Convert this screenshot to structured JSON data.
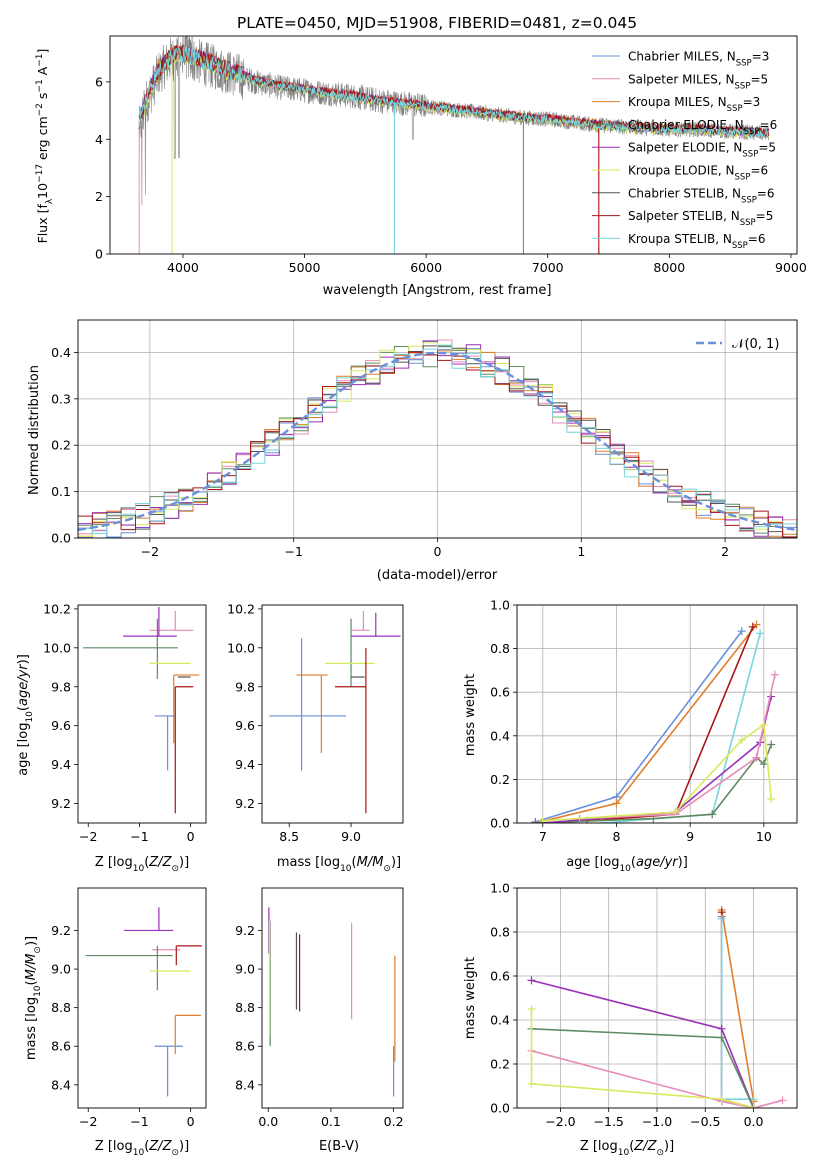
{
  "chart_data": [
    {
      "type": "line",
      "title": "PLATE=0450, MJD=51908, FIBERID=0481, z=0.045",
      "xlabel": "wavelength [Angstrom, rest frame]",
      "ylabel": "Flux [fλ10⁻¹⁷ erg cm⁻² s⁻¹ A⁻¹]",
      "xlim": [
        3400,
        9050
      ],
      "ylim": [
        0,
        7.6
      ],
      "xticks": [
        "4000",
        "5000",
        "6000",
        "7000",
        "8000",
        "9000"
      ],
      "yticks": [
        "0",
        "2",
        "4",
        "6"
      ],
      "legend_position": "right",
      "observed": {
        "x": [
          3640,
          3700,
          3800,
          3900,
          4000,
          4200,
          4400,
          4600,
          4800,
          5000,
          5200,
          5400,
          5600,
          5800,
          6000,
          6200,
          6400,
          6600,
          6800,
          7000,
          7200,
          7400,
          7600,
          7800,
          8000,
          8200,
          8400,
          8600,
          8800
        ],
        "y": [
          4.3,
          5.3,
          6.3,
          6.8,
          6.9,
          6.6,
          6.3,
          6.0,
          5.8,
          5.7,
          5.6,
          5.5,
          5.35,
          5.25,
          5.15,
          5.05,
          4.95,
          4.85,
          4.75,
          4.7,
          4.6,
          4.5,
          4.45,
          4.4,
          4.35,
          4.35,
          4.3,
          4.25,
          4.2
        ]
      },
      "model": {
        "x": [
          3640,
          3700,
          3800,
          3900,
          4000,
          4200,
          4400,
          4600,
          4800,
          5000,
          5200,
          5400,
          5600,
          5800,
          6000,
          6200,
          6400,
          6600,
          6800,
          7000,
          7200,
          7400,
          7600,
          7800,
          8000,
          8200,
          8400,
          8600,
          8800
        ],
        "y": [
          4.6,
          5.4,
          6.4,
          6.9,
          7.0,
          6.7,
          6.35,
          6.05,
          5.85,
          5.75,
          5.6,
          5.5,
          5.35,
          5.25,
          5.15,
          5.05,
          4.95,
          4.85,
          4.75,
          4.7,
          4.6,
          4.5,
          4.45,
          4.4,
          4.35,
          4.35,
          4.3,
          4.25,
          4.2
        ]
      },
      "series": [
        {
          "name": "Chabrier MILES, N",
          "sub": "SSP",
          "suffix": "=3",
          "color": "#6b8fdb"
        },
        {
          "name": "Salpeter MILES, N",
          "sub": "SSP",
          "suffix": "=5",
          "color": "#e88bb9"
        },
        {
          "name": "Kroupa MILES, N",
          "sub": "SSP",
          "suffix": "=3",
          "color": "#e07e2a"
        },
        {
          "name": "Chabrier ELODIE, N",
          "sub": "SSP",
          "suffix": "=6",
          "color": "#5f8a64"
        },
        {
          "name": "Salpeter ELODIE, N",
          "sub": "SSP",
          "suffix": "=5",
          "color": "#9b30b8"
        },
        {
          "name": "Kroupa ELODIE, N",
          "sub": "SSP",
          "suffix": "=6",
          "color": "#d8ea5a"
        },
        {
          "name": "Chabrier STELIB, N",
          "sub": "SSP",
          "suffix": "=6",
          "color": "#555555"
        },
        {
          "name": "Salpeter STELIB, N",
          "sub": "SSP",
          "suffix": "=5",
          "color": "#a81616"
        },
        {
          "name": "Kroupa STELIB, N",
          "sub": "SSP",
          "suffix": "=6",
          "color": "#77d5dc"
        }
      ]
    },
    {
      "type": "histogram",
      "xlabel": "(data-model)/error",
      "ylabel": "Normed distribution",
      "xlim": [
        -2.5,
        2.5
      ],
      "ylim": [
        0,
        0.47
      ],
      "xticks": [
        "−2",
        "−1",
        "0",
        "1",
        "2"
      ],
      "yticks": [
        "0.0",
        "0.1",
        "0.2",
        "0.3",
        "0.4"
      ],
      "grid": true,
      "legend": "𝒩(0, 1)",
      "legend_position": "top-right",
      "bin_width": 0.1
    },
    {
      "type": "scatter",
      "xlabel": "Z [log₁₀(Z/Z⊙)]",
      "ylabel": "age  [log₁₀(age/yr)]",
      "xlim": [
        -2.2,
        0.3
      ],
      "ylim": [
        9.1,
        10.22
      ],
      "xticks": [
        "−2",
        "−1",
        "0"
      ],
      "yticks": [
        "9.2",
        "9.4",
        "9.6",
        "9.8",
        "10.0",
        "10.2"
      ],
      "points": [
        {
          "x": -0.45,
          "xerr": [
            0.25,
            0.15
          ],
          "y": 9.65,
          "yerr": [
            0.28,
            0.0
          ],
          "color": "#6b8fdb"
        },
        {
          "x": -0.3,
          "xerr": [
            0.5,
            0.35
          ],
          "y": 10.09,
          "yerr": [
            0.0,
            0.1
          ],
          "color": "#e88bb9"
        },
        {
          "x": -0.33,
          "xerr": [
            0.0,
            0.5
          ],
          "y": 9.86,
          "yerr": [
            0.35,
            0.0
          ],
          "color": "#e07e2a"
        },
        {
          "x": -0.65,
          "xerr": [
            1.45,
            0.4
          ],
          "y": 10.0,
          "yerr": [
            0.16,
            0.15
          ],
          "color": "#5f8a64"
        },
        {
          "x": -0.62,
          "xerr": [
            0.7,
            0.35
          ],
          "y": 10.06,
          "yerr": [
            0.0,
            0.15
          ],
          "color": "#9b30b8"
        },
        {
          "x": -0.3,
          "xerr": [
            0.5,
            0.3
          ],
          "y": 9.92,
          "yerr": [
            0.0,
            0.0
          ],
          "color": "#d8ea5a"
        },
        {
          "x": -0.25,
          "xerr": [
            0.0,
            0.25
          ],
          "y": 9.85,
          "yerr": [
            0.0,
            0.0
          ],
          "color": "#555555"
        },
        {
          "x": -0.3,
          "xerr": [
            0.0,
            0.35
          ],
          "y": 9.8,
          "yerr": [
            0.65,
            0.0
          ],
          "color": "#a81616"
        },
        {
          "x": -0.3,
          "xerr": [
            0.0,
            0.0
          ],
          "y": 9.65,
          "yerr": [
            0.0,
            0.0
          ],
          "color": "#77d5dc"
        }
      ]
    },
    {
      "type": "scatter",
      "xlabel": "mass [log₁₀(M/M⊙)]",
      "xlim": [
        8.28,
        9.42
      ],
      "ylim": [
        9.1,
        10.22
      ],
      "xticks": [
        "8.5",
        "9.0"
      ],
      "yticks": [
        "9.2",
        "9.4",
        "9.6",
        "9.8",
        "10.0",
        "10.2"
      ],
      "points": [
        {
          "x": 8.6,
          "xerr": [
            0.26,
            0.36
          ],
          "y": 9.65,
          "yerr": [
            0.28,
            0.4
          ],
          "color": "#6b8fdb"
        },
        {
          "x": 9.1,
          "xerr": [
            0.1,
            0.05
          ],
          "y": 10.09,
          "yerr": [
            0.0,
            0.1
          ],
          "color": "#e88bb9"
        },
        {
          "x": 8.76,
          "xerr": [
            0.2,
            0.05
          ],
          "y": 9.86,
          "yerr": [
            0.4,
            0.0
          ],
          "color": "#e07e2a"
        },
        {
          "x": 9.0,
          "xerr": [
            0.0,
            0.0
          ],
          "y": 10.0,
          "yerr": [
            0.2,
            0.15
          ],
          "color": "#5f8a64"
        },
        {
          "x": 9.2,
          "xerr": [
            0.2,
            0.2
          ],
          "y": 10.06,
          "yerr": [
            0.0,
            0.12
          ],
          "color": "#9b30b8"
        },
        {
          "x": 8.99,
          "xerr": [
            0.2,
            0.2
          ],
          "y": 9.92,
          "yerr": [
            0.0,
            0.0
          ],
          "color": "#d8ea5a"
        },
        {
          "x": 9.06,
          "xerr": [
            0.06,
            0.05
          ],
          "y": 9.85,
          "yerr": [
            0.0,
            0.0
          ],
          "color": "#555555"
        },
        {
          "x": 9.12,
          "xerr": [
            0.25,
            0.0
          ],
          "y": 9.8,
          "yerr": [
            0.65,
            0.2
          ],
          "color": "#a81616"
        },
        {
          "x": 9.08,
          "xerr": [
            0.0,
            0.0
          ],
          "y": 9.86,
          "yerr": [
            0.0,
            0.0
          ],
          "color": "#77d5dc"
        }
      ]
    },
    {
      "type": "line",
      "xlabel": "age  [log₁₀(age/yr)]",
      "ylabel": "mass weight",
      "xlim": [
        6.65,
        10.45
      ],
      "ylim": [
        0,
        1.0
      ],
      "xticks": [
        "7",
        "8",
        "9",
        "10"
      ],
      "yticks": [
        "0.0",
        "0.2",
        "0.4",
        "0.6",
        "0.8",
        "1.0"
      ],
      "grid": true,
      "series": [
        {
          "color": "#6b8fdb",
          "x": [
            6.9,
            8.0,
            9.7
          ],
          "y": [
            0.005,
            0.12,
            0.88
          ]
        },
        {
          "color": "#e07e2a",
          "x": [
            6.9,
            8.0,
            9.9
          ],
          "y": [
            0.0,
            0.09,
            0.91
          ]
        },
        {
          "color": "#a81616",
          "x": [
            7.6,
            8.8,
            9.85
          ],
          "y": [
            0.01,
            0.04,
            0.9
          ]
        },
        {
          "color": "#77d5dc",
          "x": [
            7.8,
            9.3,
            9.95
          ],
          "y": [
            0.0,
            0.04,
            0.87
          ]
        },
        {
          "color": "#5f8a64",
          "x": [
            6.9,
            8.5,
            9.3,
            9.9,
            10.0,
            10.1
          ],
          "y": [
            0.0,
            0.02,
            0.04,
            0.3,
            0.27,
            0.36
          ]
        },
        {
          "color": "#9b30b8",
          "x": [
            7.0,
            8.8,
            9.95,
            10.1
          ],
          "y": [
            0.0,
            0.05,
            0.37,
            0.58
          ]
        },
        {
          "color": "#e88bb9",
          "x": [
            7.5,
            8.8,
            9.9,
            10.15
          ],
          "y": [
            0.02,
            0.04,
            0.3,
            0.68
          ]
        },
        {
          "color": "#d8ea5a",
          "x": [
            7.0,
            8.8,
            9.7,
            10.0,
            10.1
          ],
          "y": [
            0.01,
            0.05,
            0.38,
            0.45,
            0.11
          ]
        }
      ]
    },
    {
      "type": "scatter",
      "xlabel": "Z [log₁₀(Z/Z⊙)]",
      "ylabel": "mass [log₁₀(M/M⊙)]",
      "xlim": [
        -2.2,
        0.3
      ],
      "ylim": [
        8.28,
        9.42
      ],
      "xticks": [
        "−2",
        "−1",
        "0"
      ],
      "yticks": [
        "8.4",
        "8.6",
        "8.8",
        "9.0",
        "9.2"
      ],
      "points": [
        {
          "x": -0.45,
          "xerr": [
            0.25,
            0.3
          ],
          "y": 8.6,
          "yerr": [
            0.26,
            0.0
          ],
          "color": "#6b8fdb"
        },
        {
          "x": -0.3,
          "xerr": [
            0.45,
            0.1
          ],
          "y": 9.1,
          "yerr": [
            0.0,
            0.0
          ],
          "color": "#e88bb9"
        },
        {
          "x": -0.3,
          "xerr": [
            0.0,
            0.5
          ],
          "y": 8.76,
          "yerr": [
            0.2,
            0.0
          ],
          "color": "#e07e2a"
        },
        {
          "x": -0.65,
          "xerr": [
            1.4,
            0.3
          ],
          "y": 9.07,
          "yerr": [
            0.18,
            0.05
          ],
          "color": "#5f8a64"
        },
        {
          "x": -0.62,
          "xerr": [
            0.68,
            0.28
          ],
          "y": 9.2,
          "yerr": [
            0.0,
            0.12
          ],
          "color": "#9b30b8"
        },
        {
          "x": -0.3,
          "xerr": [
            0.5,
            0.3
          ],
          "y": 8.99,
          "yerr": [
            0.0,
            0.0
          ],
          "color": "#d8ea5a"
        },
        {
          "x": -0.28,
          "xerr": [
            0.0,
            0.5
          ],
          "y": 9.12,
          "yerr": [
            0.1,
            0.0
          ],
          "color": "#a81616"
        },
        {
          "x": -0.2,
          "xerr": [
            0.0,
            0.0
          ],
          "y": 8.97,
          "yerr": [
            0.0,
            0.0
          ],
          "color": "#77d5dc"
        }
      ]
    },
    {
      "type": "scatter",
      "xlabel": "E(B-V)",
      "xlim": [
        -0.01,
        0.215
      ],
      "ylim": [
        8.28,
        9.42
      ],
      "xticks": [
        "0.0",
        "0.1",
        "0.2"
      ],
      "yticks": [
        "8.4",
        "8.6",
        "8.8",
        "9.0",
        "9.2"
      ],
      "points": [
        {
          "x": 0.003,
          "y": 9.05,
          "yerr": [
            0.45,
            0.2
          ],
          "color": "#5f8a64"
        },
        {
          "x": 0.001,
          "y": 9.2,
          "yerr": [
            0.12,
            0.12
          ],
          "color": "#9b30b8"
        },
        {
          "x": 0.002,
          "y": 8.95,
          "yerr": [
            0.3,
            0.3
          ],
          "color": "#d8ea5a"
        },
        {
          "x": 0.045,
          "y": 8.99,
          "yerr": [
            0.2,
            0.2
          ],
          "color": "#555555"
        },
        {
          "x": 0.05,
          "y": 8.98,
          "yerr": [
            0.2,
            0.2
          ],
          "color": "#a81616"
        },
        {
          "x": 0.133,
          "y": 9.09,
          "yerr": [
            0.35,
            0.15
          ],
          "color": "#e88bb9"
        },
        {
          "x": 0.2,
          "y": 8.6,
          "yerr": [
            0.26,
            0.0
          ],
          "color": "#6b8fdb"
        },
        {
          "x": 0.202,
          "y": 8.77,
          "yerr": [
            0.25,
            0.3
          ],
          "color": "#e07e2a"
        }
      ]
    },
    {
      "type": "line",
      "xlabel": "Z [log₁₀(Z/Z⊙)]",
      "ylabel": "mass weight",
      "xlim": [
        -2.45,
        0.45
      ],
      "ylim": [
        0,
        1.0
      ],
      "xticks": [
        "−2.0",
        "−1.5",
        "−1.0",
        "−0.5",
        "0.0"
      ],
      "yticks": [
        "0.0",
        "0.2",
        "0.4",
        "0.6",
        "0.8",
        "1.0"
      ],
      "grid": true,
      "series": [
        {
          "color": "#6b8fdb",
          "x": [
            -0.33,
            -0.33,
            0.0
          ],
          "y": [
            0.87,
            0.03,
            0.0
          ]
        },
        {
          "color": "#e07e2a",
          "x": [
            -0.33,
            0.0,
            0.0
          ],
          "y": [
            0.9,
            0.03,
            0.0
          ]
        },
        {
          "color": "#a81616",
          "x": [
            -0.33,
            -0.33,
            0.0
          ],
          "y": [
            0.89,
            0.04,
            0.0
          ]
        },
        {
          "color": "#77d5dc",
          "x": [
            -0.33,
            -0.33,
            0.0
          ],
          "y": [
            0.86,
            0.04,
            0.04
          ]
        },
        {
          "color": "#9b30b8",
          "x": [
            -2.3,
            -0.33,
            0.0
          ],
          "y": [
            0.58,
            0.36,
            0.0
          ]
        },
        {
          "color": "#5f8a64",
          "x": [
            -2.3,
            -0.33,
            0.0
          ],
          "y": [
            0.36,
            0.32,
            0.0
          ]
        },
        {
          "color": "#e88bb9",
          "x": [
            -2.3,
            -0.33,
            0.0,
            0.3
          ],
          "y": [
            0.26,
            0.03,
            0.0,
            0.035
          ]
        },
        {
          "color": "#d8ea5a",
          "x": [
            -2.3,
            -2.3,
            -0.33,
            0.0
          ],
          "y": [
            0.45,
            0.11,
            0.04,
            0.0
          ]
        }
      ]
    }
  ]
}
